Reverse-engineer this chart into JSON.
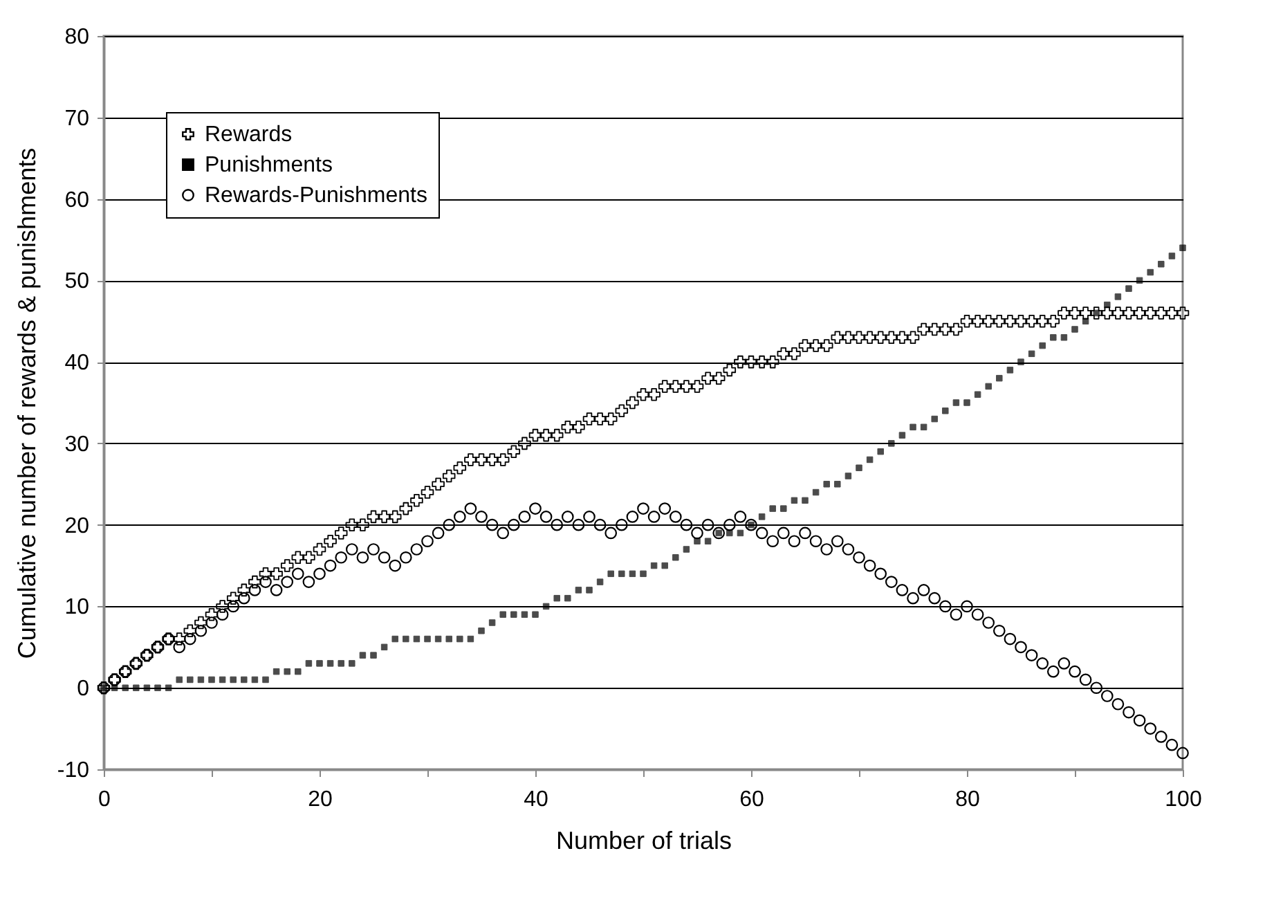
{
  "chart_data": {
    "type": "scatter",
    "xlabel": "Number of trials",
    "ylabel": "Cumulative number of rewards & punishments",
    "x": [
      0,
      1,
      2,
      3,
      4,
      5,
      6,
      7,
      8,
      9,
      10,
      11,
      12,
      13,
      14,
      15,
      16,
      17,
      18,
      19,
      20,
      21,
      22,
      23,
      24,
      25,
      26,
      27,
      28,
      29,
      30,
      31,
      32,
      33,
      34,
      35,
      36,
      37,
      38,
      39,
      40,
      41,
      42,
      43,
      44,
      45,
      46,
      47,
      48,
      49,
      50,
      51,
      52,
      53,
      54,
      55,
      56,
      57,
      58,
      59,
      60,
      61,
      62,
      63,
      64,
      65,
      66,
      67,
      68,
      69,
      70,
      71,
      72,
      73,
      74,
      75,
      76,
      77,
      78,
      79,
      80,
      81,
      82,
      83,
      84,
      85,
      86,
      87,
      88,
      89,
      90,
      91,
      92,
      93,
      94,
      95,
      96,
      97,
      98,
      99,
      100
    ],
    "series": [
      {
        "name": "Rewards",
        "color": "#000000",
        "marker": "cross",
        "values": [
          0,
          1,
          2,
          3,
          4,
          5,
          6,
          6,
          7,
          8,
          9,
          10,
          11,
          12,
          13,
          14,
          14,
          15,
          16,
          16,
          17,
          18,
          19,
          20,
          20,
          21,
          21,
          21,
          22,
          23,
          24,
          25,
          26,
          27,
          28,
          28,
          28,
          28,
          29,
          30,
          31,
          31,
          31,
          32,
          32,
          33,
          33,
          33,
          34,
          35,
          36,
          36,
          37,
          37,
          37,
          37,
          38,
          38,
          39,
          40,
          40,
          40,
          40,
          41,
          41,
          42,
          42,
          42,
          43,
          43,
          43,
          43,
          43,
          43,
          43,
          43,
          44,
          44,
          44,
          44,
          45,
          45,
          45,
          45,
          45,
          45,
          45,
          45,
          45,
          46,
          46,
          46,
          46,
          46,
          46,
          46,
          46,
          46,
          46,
          46,
          46
        ]
      },
      {
        "name": "Punishments",
        "color": "#000000",
        "marker": "square",
        "values": [
          0,
          0,
          0,
          0,
          0,
          0,
          0,
          1,
          1,
          1,
          1,
          1,
          1,
          1,
          1,
          1,
          2,
          2,
          2,
          3,
          3,
          3,
          3,
          3,
          4,
          4,
          5,
          6,
          6,
          6,
          6,
          6,
          6,
          6,
          6,
          7,
          8,
          9,
          9,
          9,
          9,
          10,
          11,
          11,
          12,
          12,
          13,
          14,
          14,
          14,
          14,
          15,
          15,
          16,
          17,
          18,
          18,
          19,
          19,
          19,
          20,
          21,
          22,
          22,
          23,
          23,
          24,
          25,
          25,
          26,
          27,
          28,
          29,
          30,
          31,
          32,
          32,
          33,
          34,
          35,
          35,
          36,
          37,
          38,
          39,
          40,
          41,
          42,
          43,
          43,
          44,
          45,
          46,
          47,
          48,
          49,
          50,
          51,
          52,
          53,
          54
        ]
      },
      {
        "name": "Rewards-Punishments",
        "color": "#000000",
        "marker": "circle",
        "values": [
          0,
          1,
          2,
          3,
          4,
          5,
          6,
          5,
          6,
          7,
          8,
          9,
          10,
          11,
          12,
          13,
          12,
          13,
          14,
          13,
          14,
          15,
          16,
          17,
          16,
          17,
          16,
          15,
          16,
          17,
          18,
          19,
          20,
          21,
          22,
          21,
          20,
          19,
          20,
          21,
          22,
          21,
          20,
          21,
          20,
          21,
          20,
          19,
          20,
          21,
          22,
          21,
          22,
          21,
          20,
          19,
          20,
          19,
          20,
          21,
          20,
          19,
          18,
          19,
          18,
          19,
          18,
          17,
          18,
          17,
          16,
          15,
          14,
          13,
          12,
          11,
          12,
          11,
          10,
          9,
          10,
          9,
          8,
          7,
          6,
          5,
          4,
          3,
          2,
          3,
          2,
          1,
          0,
          -1,
          -2,
          -3,
          -4,
          -5,
          -6,
          -7,
          -8
        ]
      }
    ],
    "xlim": [
      0,
      100
    ],
    "xticks": [
      0,
      {
        "value": 10,
        "label": null
      },
      20,
      {
        "value": 30,
        "label": null
      },
      40,
      {
        "value": 50,
        "label": null
      },
      60,
      {
        "value": 70,
        "label": null
      },
      80,
      {
        "value": 90,
        "label": null
      },
      100
    ],
    "ylim": [
      -10,
      80
    ],
    "yticks": [
      -10,
      0,
      10,
      20,
      30,
      40,
      50,
      60,
      70,
      80
    ],
    "grid": "y",
    "legend": "top left"
  }
}
